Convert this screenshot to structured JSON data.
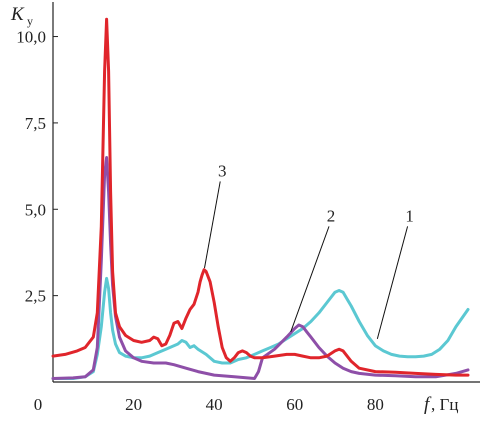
{
  "chart_data": {
    "type": "line",
    "y_axis_label": "K",
    "y_axis_label_sub": "y",
    "x_axis_label": "f",
    "x_axis_unit": ", Гц",
    "x_ticks": [
      "0",
      "20",
      "40",
      "60",
      "80"
    ],
    "x_tick_values": [
      0,
      20,
      40,
      60,
      80
    ],
    "y_ticks": [
      "2,5",
      "5,0",
      "7,5",
      "10,0"
    ],
    "y_tick_values": [
      2.5,
      5.0,
      7.5,
      10.0
    ],
    "xlim": [
      0,
      103
    ],
    "ylim": [
      0,
      11
    ],
    "grid": false,
    "series": [
      {
        "name": "1",
        "color": "#5bc8d2",
        "x": [
          0,
          5,
          8,
          10,
          11,
          12,
          12.8,
          13.3,
          13.8,
          14.3,
          14.8,
          15.5,
          16.5,
          18,
          20,
          22,
          24,
          26,
          28,
          30,
          31,
          32,
          33,
          34,
          35,
          36,
          38,
          40,
          42,
          44,
          46,
          48,
          50,
          52,
          54,
          56,
          58,
          60,
          62,
          64,
          66,
          68,
          70,
          71,
          72,
          73,
          74,
          76,
          78,
          80,
          82,
          84,
          86,
          88,
          90,
          92,
          94,
          96,
          98,
          100,
          103
        ],
        "y": [
          0.1,
          0.1,
          0.15,
          0.3,
          0.8,
          1.6,
          2.6,
          3.0,
          2.7,
          2.0,
          1.5,
          1.1,
          0.85,
          0.75,
          0.7,
          0.7,
          0.75,
          0.85,
          0.95,
          1.05,
          1.1,
          1.2,
          1.15,
          1.0,
          1.05,
          0.95,
          0.8,
          0.6,
          0.55,
          0.55,
          0.65,
          0.7,
          0.8,
          0.9,
          1.0,
          1.1,
          1.25,
          1.4,
          1.55,
          1.75,
          2.0,
          2.3,
          2.6,
          2.65,
          2.6,
          2.4,
          2.2,
          1.75,
          1.35,
          1.05,
          0.9,
          0.8,
          0.75,
          0.73,
          0.73,
          0.75,
          0.8,
          0.95,
          1.2,
          1.6,
          2.1
        ]
      },
      {
        "name": "2",
        "color": "#8e4fa8",
        "x": [
          0,
          5,
          8,
          10,
          11,
          12,
          12.8,
          13.3,
          13.8,
          14.3,
          14.8,
          15.5,
          16.5,
          18,
          20,
          22,
          25,
          28,
          30,
          33,
          36,
          40,
          45,
          50,
          51,
          52,
          55,
          58,
          60,
          61,
          62,
          63,
          64,
          66,
          68,
          70,
          72,
          74,
          76,
          80,
          85,
          90,
          95,
          100,
          103
        ],
        "y": [
          0.1,
          0.12,
          0.15,
          0.35,
          1.0,
          3.5,
          6.0,
          6.5,
          5.5,
          4.0,
          2.8,
          1.9,
          1.3,
          0.9,
          0.7,
          0.6,
          0.55,
          0.55,
          0.5,
          0.4,
          0.3,
          0.2,
          0.15,
          0.1,
          0.3,
          0.7,
          0.95,
          1.3,
          1.55,
          1.65,
          1.6,
          1.45,
          1.3,
          1.0,
          0.75,
          0.55,
          0.4,
          0.3,
          0.25,
          0.2,
          0.18,
          0.15,
          0.15,
          0.25,
          0.35
        ]
      },
      {
        "name": "3",
        "color": "#e0252b",
        "x": [
          0,
          3,
          6,
          8,
          10,
          11,
          12,
          12.8,
          13.3,
          13.8,
          14.3,
          14.8,
          15.5,
          16.5,
          18,
          20,
          22,
          24,
          25,
          26,
          27,
          28,
          29,
          30,
          31,
          32,
          33,
          34,
          35,
          36,
          36.5,
          37,
          37.5,
          38,
          39,
          40,
          41,
          42,
          43,
          44,
          45,
          46,
          47,
          48,
          49,
          50,
          52,
          55,
          58,
          60,
          62,
          64,
          66,
          68,
          70,
          71,
          72,
          74,
          76,
          80,
          85,
          90,
          95,
          100,
          103
        ],
        "y": [
          0.75,
          0.8,
          0.9,
          1.0,
          1.3,
          2.0,
          4.5,
          9.0,
          10.5,
          9.0,
          5.5,
          3.2,
          2.0,
          1.6,
          1.35,
          1.2,
          1.15,
          1.2,
          1.3,
          1.25,
          1.05,
          1.1,
          1.35,
          1.7,
          1.75,
          1.55,
          1.85,
          2.1,
          2.25,
          2.6,
          2.9,
          3.1,
          3.25,
          3.2,
          2.9,
          2.3,
          1.6,
          1.0,
          0.7,
          0.6,
          0.7,
          0.85,
          0.9,
          0.85,
          0.75,
          0.7,
          0.7,
          0.75,
          0.8,
          0.8,
          0.75,
          0.7,
          0.7,
          0.75,
          0.9,
          0.95,
          0.9,
          0.6,
          0.4,
          0.3,
          0.28,
          0.25,
          0.22,
          0.2,
          0.2
        ]
      }
    ],
    "curve_labels": [
      {
        "text": "3",
        "series": "3",
        "anchor": [
          37.6,
          3.3
        ],
        "label_at": [
          42,
          5.95
        ]
      },
      {
        "text": "2",
        "series": "2",
        "anchor": [
          59,
          1.45
        ],
        "label_at": [
          69,
          4.65
        ]
      },
      {
        "text": "1",
        "series": "1",
        "anchor": [
          80.5,
          1.25
        ],
        "label_at": [
          88.5,
          4.65
        ]
      }
    ]
  }
}
